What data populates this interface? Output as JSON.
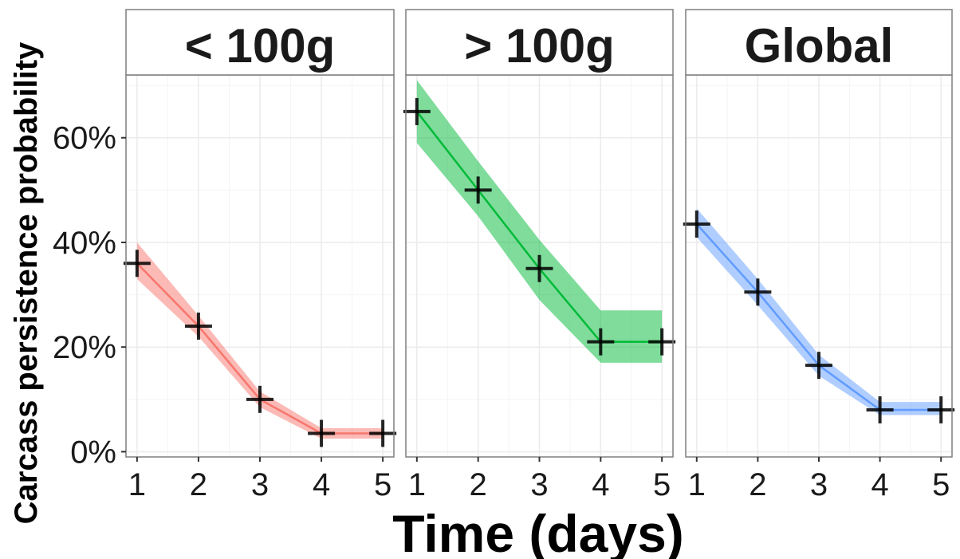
{
  "chart_data": {
    "type": "line",
    "xlabel": "Time (days)",
    "ylabel": "Carcass persistence probability",
    "x": [
      1,
      2,
      3,
      4,
      5
    ],
    "x_ticks": [
      "1",
      "2",
      "3",
      "4",
      "5"
    ],
    "ylim": [
      -0.01,
      0.72
    ],
    "y_ticks": [
      0,
      0.2,
      0.4,
      0.6
    ],
    "y_tick_labels": [
      "0%",
      "20%",
      "40%",
      "60%"
    ],
    "grid": true,
    "panels": [
      {
        "name": "< 100g",
        "color": "#F8766D",
        "values": [
          0.36,
          0.24,
          0.1,
          0.035,
          0.035
        ],
        "lower": [
          0.33,
          0.22,
          0.085,
          0.025,
          0.025
        ],
        "upper": [
          0.4,
          0.26,
          0.115,
          0.045,
          0.045
        ]
      },
      {
        "name": "> 100g",
        "color": "#00BA38",
        "values": [
          0.65,
          0.5,
          0.35,
          0.21,
          0.21
        ],
        "lower": [
          0.59,
          0.45,
          0.29,
          0.17,
          0.17
        ],
        "upper": [
          0.71,
          0.555,
          0.405,
          0.27,
          0.27
        ]
      },
      {
        "name": "Global",
        "color": "#619CFF",
        "values": [
          0.435,
          0.305,
          0.165,
          0.08,
          0.08
        ],
        "lower": [
          0.41,
          0.28,
          0.145,
          0.07,
          0.07
        ],
        "upper": [
          0.465,
          0.33,
          0.185,
          0.095,
          0.095
        ]
      }
    ]
  }
}
